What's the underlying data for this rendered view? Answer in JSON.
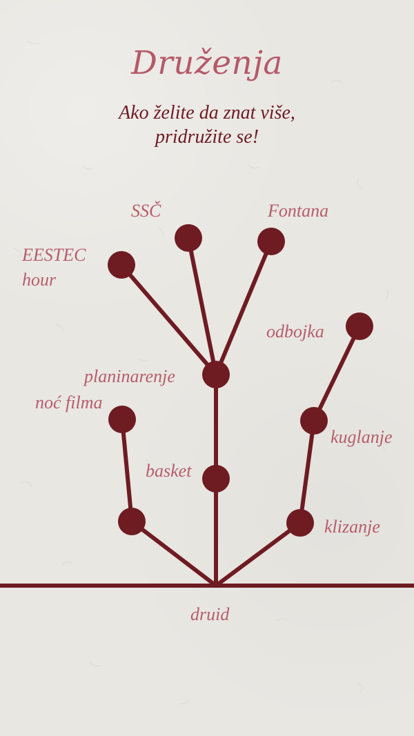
{
  "header": {
    "title": "Druženja",
    "subtitle_line1": "Ako želite da znat više,",
    "subtitle_line2": "pridružite se!"
  },
  "diagram": {
    "root_label": "druid",
    "branch_labels": {
      "ssc": "SSČ",
      "fontana": "Fontana",
      "eestec_line1": "EESTEC",
      "eestec_line2": "hour",
      "odbojka": "odbojka",
      "planinarenje": "planinarenje",
      "noc_filma": "noć filma",
      "kuglanje": "kuglanje",
      "basket": "basket",
      "klizanje": "klizanje"
    }
  },
  "colors": {
    "node": "#6e1b22",
    "label": "#b55d6c",
    "subtitle": "#6d1a24",
    "title": "#b5596a",
    "background": "#e9e7e2"
  }
}
